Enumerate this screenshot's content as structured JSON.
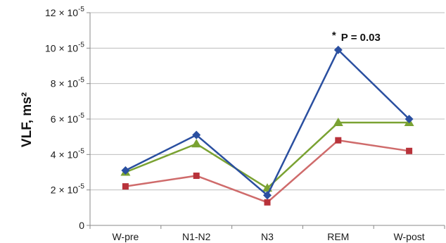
{
  "chart_data": {
    "type": "line",
    "title": "",
    "xlabel": "",
    "ylabel": "VLF, ms²",
    "categories": [
      "W-pre",
      "N1-N2",
      "N3",
      "REM",
      "W-post"
    ],
    "ylim": [
      0,
      12
    ],
    "yunit_exponent": "-5",
    "yticks": [
      0,
      2,
      4,
      6,
      8,
      10,
      12
    ],
    "ytick_labels": [
      "0",
      "2 × 10",
      "4 × 10",
      "6 × 10",
      "8 × 10",
      "10 × 10",
      "12 × 10"
    ],
    "grid": true,
    "series": [
      {
        "color": "#2a4fa0",
        "marker": "diamond",
        "values": [
          3.1,
          5.1,
          1.7,
          9.9,
          6.0
        ]
      },
      {
        "color": "#7aa232",
        "marker": "triangle",
        "values": [
          3.0,
          4.6,
          2.1,
          5.8,
          5.8
        ]
      },
      {
        "color": "#cf6b6b",
        "marker": "square",
        "marker_color": "#b8323a",
        "values": [
          2.2,
          2.8,
          1.3,
          4.8,
          4.2
        ]
      }
    ],
    "annotations": [
      {
        "category": "REM",
        "star": "*",
        "text": "P = 0.03"
      }
    ]
  }
}
